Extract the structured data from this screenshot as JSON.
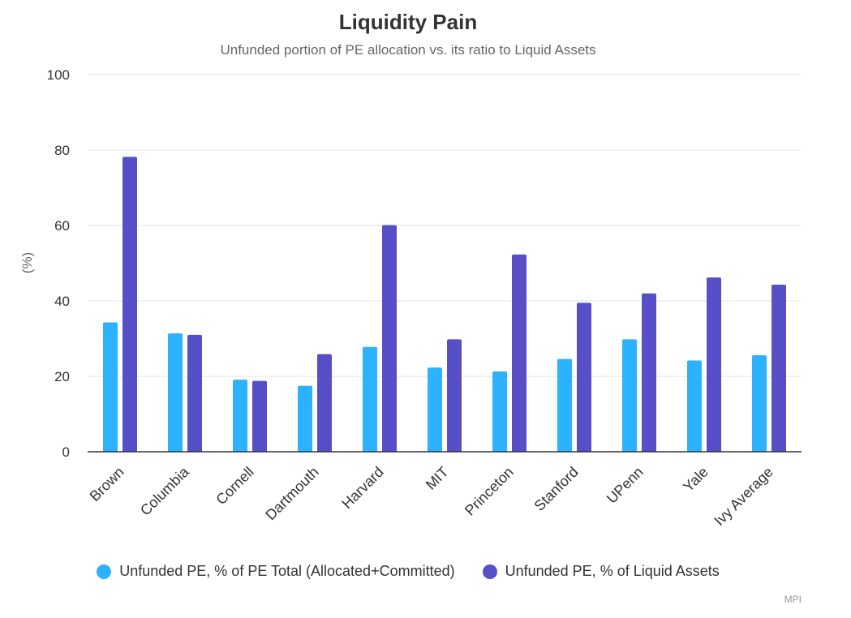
{
  "chart_data": {
    "type": "bar",
    "title": "Liquidity Pain",
    "subtitle": "Unfunded portion of PE allocation vs. its ratio to Liquid Assets",
    "xlabel": "",
    "ylabel": "(%)",
    "ylim": [
      0,
      100
    ],
    "yticks": [
      0,
      20,
      40,
      60,
      80,
      100
    ],
    "grid": true,
    "legend_position": "bottom",
    "categories": [
      "Brown",
      "Columbia",
      "Cornell",
      "Dartmouth",
      "Harvard",
      "MIT",
      "Princeton",
      "Stanford",
      "UPenn",
      "Yale",
      "Ivy Average"
    ],
    "series": [
      {
        "name": "Unfunded PE, % of PE Total (Allocated+Committed)",
        "color": "#2db2ff",
        "values": [
          34.3,
          31.4,
          19.1,
          17.5,
          27.8,
          22.3,
          21.3,
          24.6,
          29.8,
          24.2,
          25.6
        ]
      },
      {
        "name": "Unfunded PE, % of Liquid Assets",
        "color": "#574fc8",
        "values": [
          78.2,
          31.0,
          18.8,
          25.9,
          60.1,
          29.8,
          52.3,
          39.5,
          42.0,
          46.2,
          44.3
        ]
      }
    ],
    "credit": "MPI"
  }
}
